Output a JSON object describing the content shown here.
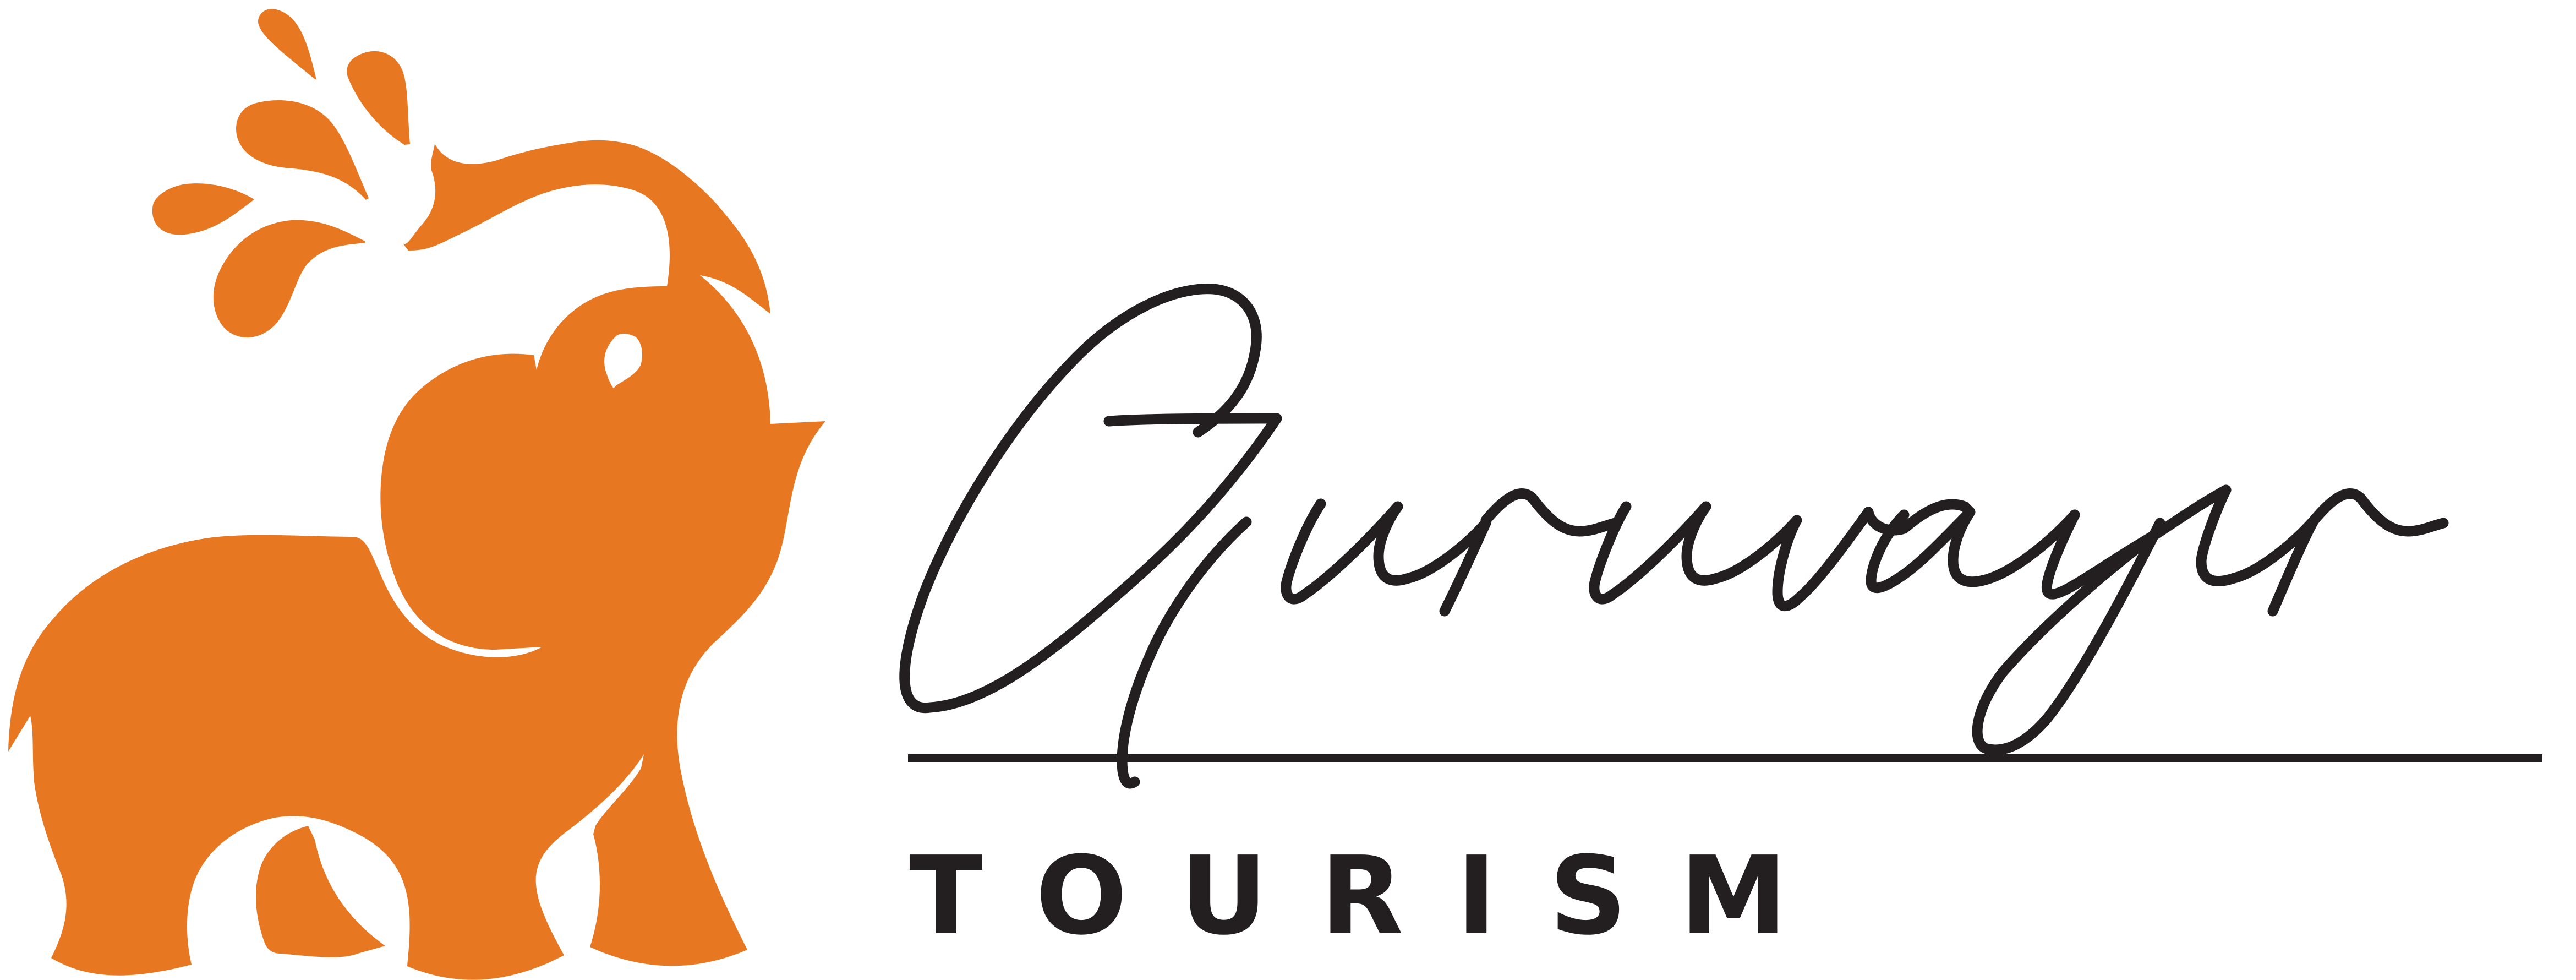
{
  "brand": {
    "name": "Guruvayur",
    "tagline": "TOURISM"
  },
  "colors": {
    "elephant": "#E87722",
    "text": "#231F20",
    "background": "#FFFFFF"
  },
  "icons": {
    "mark": "elephant-spraying-water-icon"
  }
}
